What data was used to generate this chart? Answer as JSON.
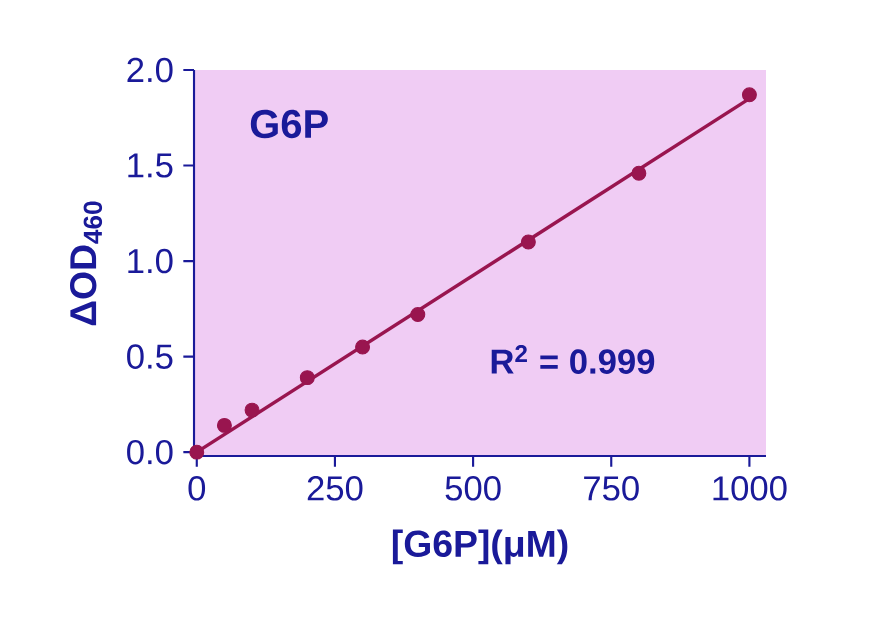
{
  "chart_data": {
    "type": "scatter",
    "xlabel": "[G6P](μM)",
    "ylabel": "ΔOD$_{460}$",
    "annotations": [
      "G6P",
      "R$^{2}$ = 0.999"
    ],
    "xlim": [
      -5,
      1030
    ],
    "ylim": [
      -0.02,
      2.0
    ],
    "xticks": [
      0,
      250,
      500,
      750,
      1000
    ],
    "yticks": [
      {
        "value": 0,
        "label": "0.0"
      },
      {
        "value": 0.5,
        "label": "0.5"
      },
      {
        "value": 1,
        "label": "1.0"
      },
      {
        "value": 1.5,
        "label": "1.5"
      },
      {
        "value": 2,
        "label": "2.0"
      }
    ],
    "series": [
      {
        "marker": "circle",
        "color": "#99154f",
        "x": [
          0,
          50,
          100,
          200,
          300,
          400,
          600,
          800,
          1000
        ],
        "values": [
          0.0,
          0.14,
          0.22,
          0.39,
          0.55,
          0.72,
          1.1,
          1.46,
          1.87
        ]
      },
      {
        "type": "line",
        "marker": "none",
        "color": "#99154f",
        "x": [
          0,
          1000
        ],
        "values": [
          0.0,
          1.85
        ]
      }
    ]
  }
}
